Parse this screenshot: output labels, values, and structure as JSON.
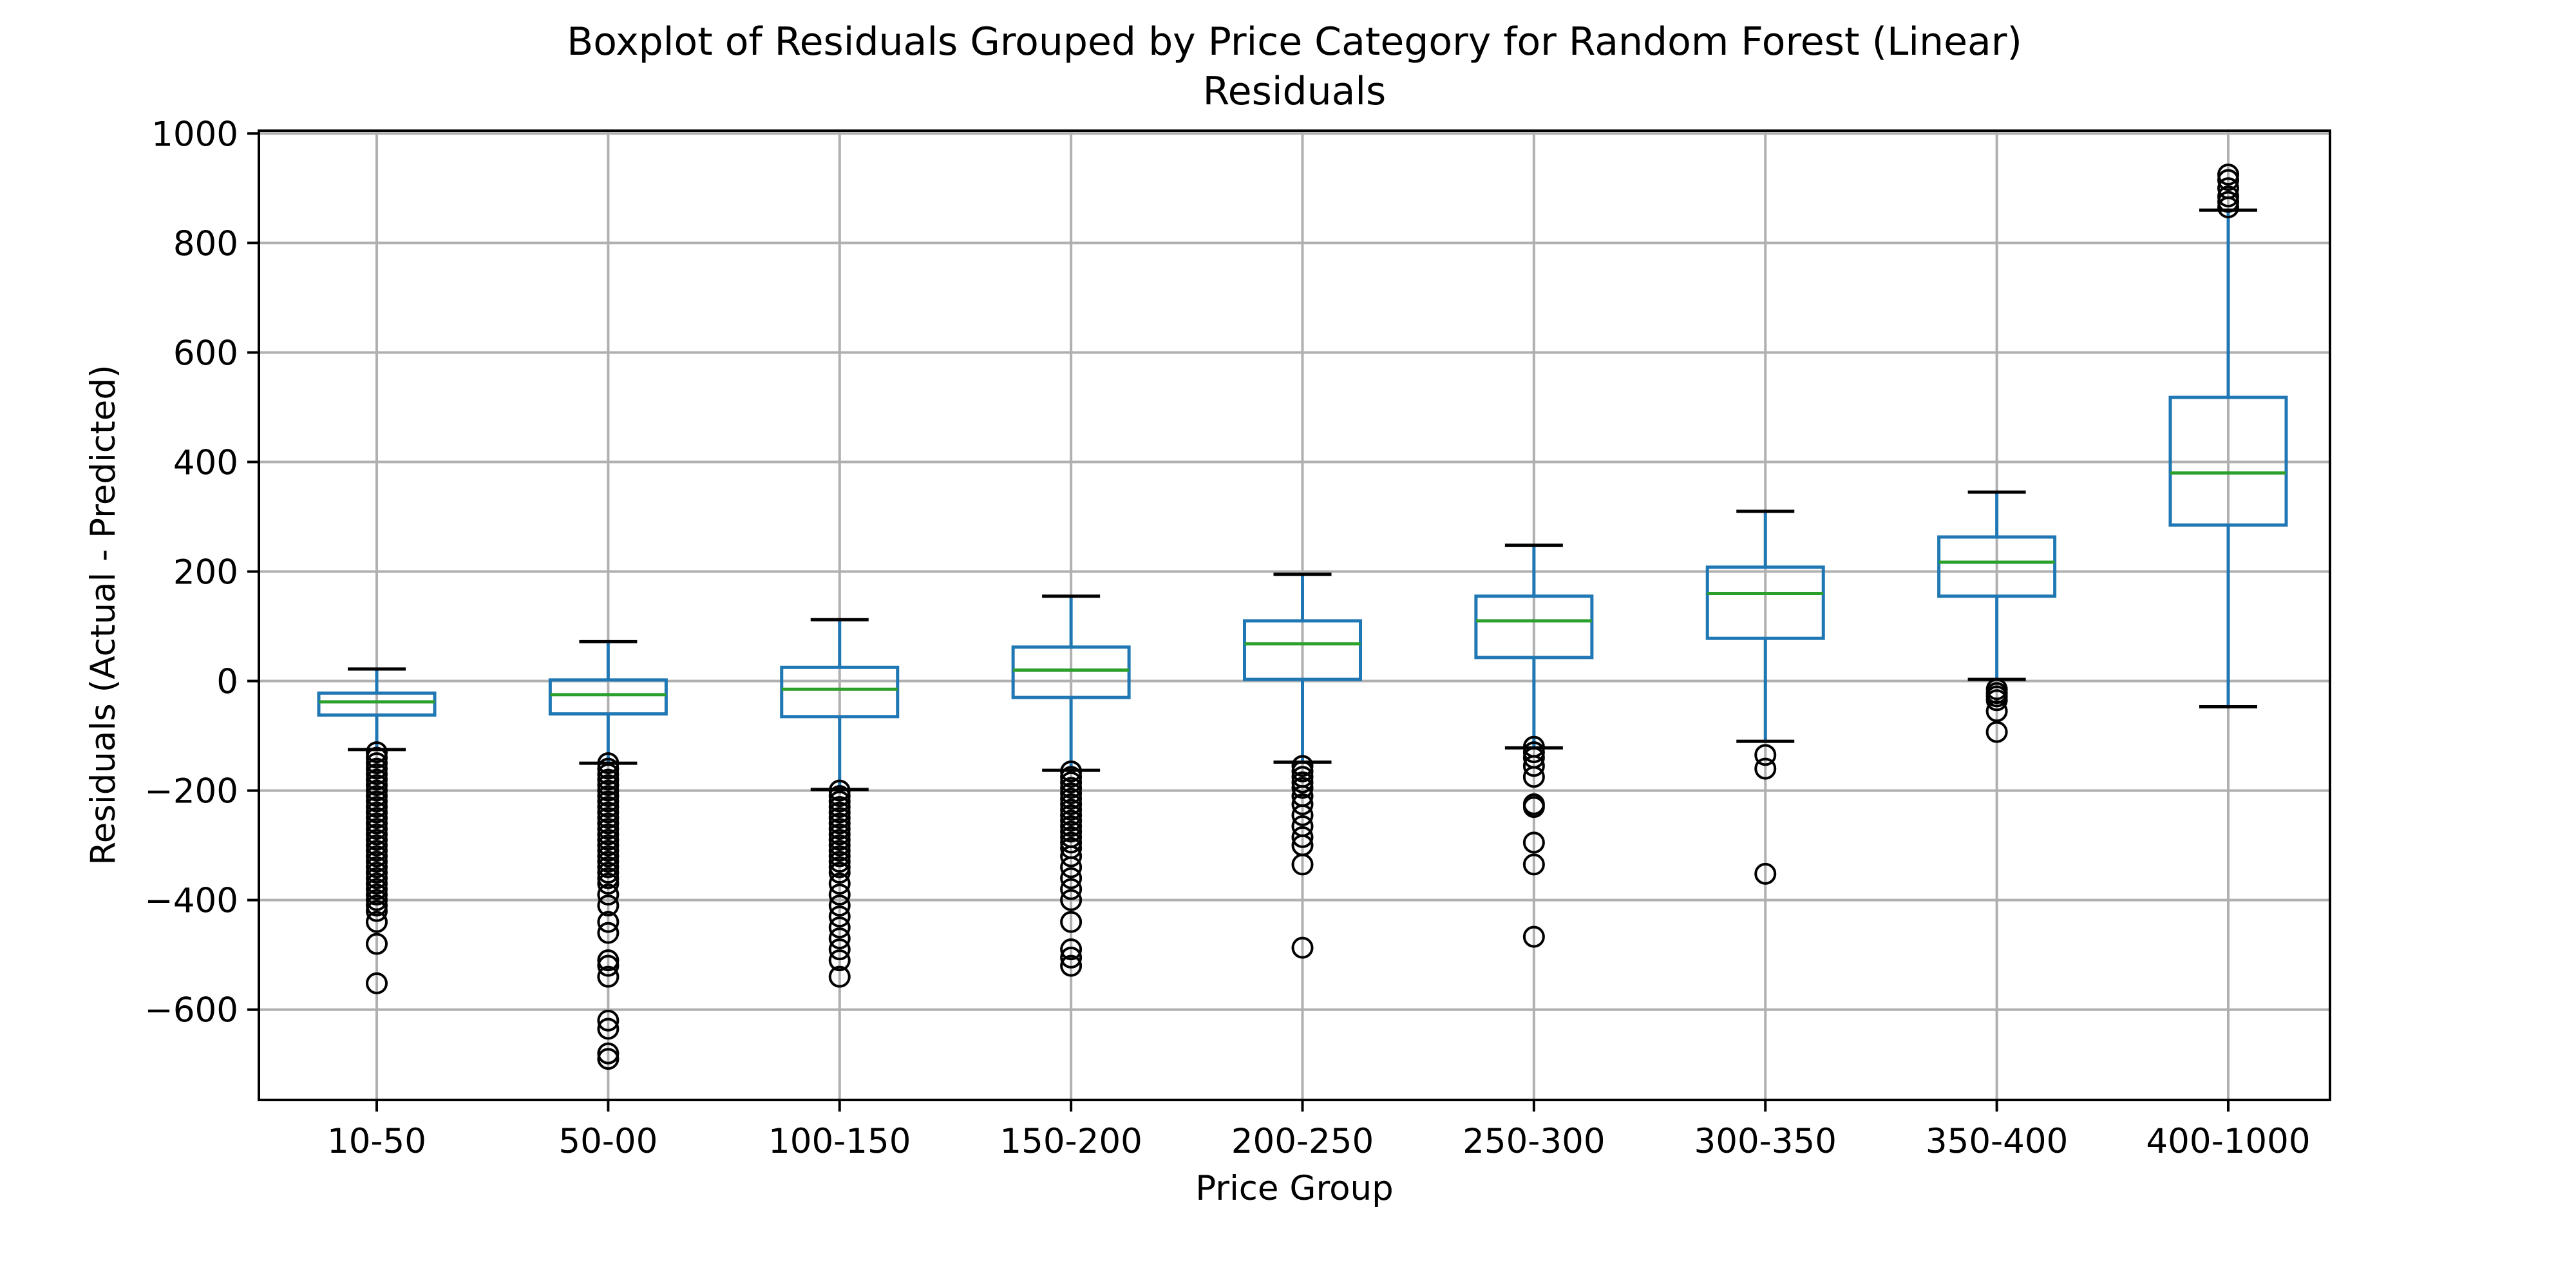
{
  "chart_data": {
    "type": "boxplot",
    "title": "Boxplot of Residuals Grouped by Price Category for Random Forest (Linear)",
    "subtitle": "Residuals",
    "xlabel": "Price Group",
    "ylabel": "Residuals (Actual - Predicted)",
    "ylim": [
      -765,
      1005
    ],
    "yticks": [
      -600,
      -400,
      -200,
      0,
      200,
      400,
      600,
      800,
      1000
    ],
    "ytick_labels": [
      "−600",
      "−400",
      "−200",
      "0",
      "200",
      "400",
      "600",
      "800",
      "1000"
    ],
    "grid": true,
    "colors": {
      "box": "#1f77b4",
      "median": "#2ca02c",
      "whisker": "#1f77b4",
      "cap": "#000000",
      "flier": "#000000"
    },
    "categories": [
      "10-50",
      "50-00",
      "100-150",
      "150-200",
      "200-250",
      "250-300",
      "300-350",
      "350-400",
      "400-1000"
    ],
    "boxes": [
      {
        "category": "10-50",
        "whisker_low": -125,
        "q1": -62,
        "median": -38,
        "q3": -22,
        "whisker_high": 22,
        "fliers": [
          -130,
          -140,
          -150,
          -160,
          -170,
          -180,
          -190,
          -200,
          -210,
          -220,
          -230,
          -240,
          -250,
          -260,
          -270,
          -280,
          -290,
          -300,
          -310,
          -320,
          -330,
          -340,
          -350,
          -360,
          -370,
          -380,
          -390,
          -400,
          -410,
          -420,
          -440,
          -480,
          -552
        ]
      },
      {
        "category": "50-00",
        "whisker_low": -150,
        "q1": -60,
        "median": -25,
        "q3": 2,
        "whisker_high": 72,
        "fliers": [
          -150,
          -160,
          -170,
          -180,
          -190,
          -200,
          -210,
          -220,
          -230,
          -240,
          -250,
          -260,
          -270,
          -280,
          -290,
          -300,
          -310,
          -320,
          -330,
          -340,
          -350,
          -360,
          -370,
          -390,
          -410,
          -440,
          -460,
          -510,
          -520,
          -540,
          -620,
          -635,
          -680,
          -690
        ]
      },
      {
        "category": "100-150",
        "whisker_low": -198,
        "q1": -65,
        "median": -15,
        "q3": 25,
        "whisker_high": 112,
        "fliers": [
          -200,
          -210,
          -220,
          -230,
          -240,
          -250,
          -260,
          -270,
          -280,
          -290,
          -300,
          -310,
          -320,
          -330,
          -340,
          -350,
          -370,
          -390,
          -410,
          -430,
          -450,
          -470,
          -490,
          -510,
          -540
        ]
      },
      {
        "category": "150-200",
        "whisker_low": -163,
        "q1": -30,
        "median": 20,
        "q3": 62,
        "whisker_high": 155,
        "fliers": [
          -165,
          -175,
          -185,
          -195,
          -205,
          -215,
          -225,
          -235,
          -245,
          -255,
          -265,
          -275,
          -285,
          -295,
          -305,
          -320,
          -340,
          -360,
          -380,
          -400,
          -440,
          -490,
          -505,
          -520
        ]
      },
      {
        "category": "200-250",
        "whisker_low": -148,
        "q1": 3,
        "median": 68,
        "q3": 110,
        "whisker_high": 195,
        "fliers": [
          -155,
          -165,
          -175,
          -185,
          -195,
          -210,
          -225,
          -245,
          -265,
          -285,
          -300,
          -335,
          -487
        ]
      },
      {
        "category": "250-300",
        "whisker_low": -122,
        "q1": 43,
        "median": 110,
        "q3": 155,
        "whisker_high": 248,
        "fliers": [
          -120,
          -130,
          -140,
          -155,
          -175,
          -225,
          -230,
          -295,
          -335,
          -467
        ]
      },
      {
        "category": "300-350",
        "whisker_low": -110,
        "q1": 78,
        "median": 160,
        "q3": 208,
        "whisker_high": 310,
        "fliers": [
          -135,
          -160,
          -352
        ]
      },
      {
        "category": "350-400",
        "whisker_low": 3,
        "q1": 155,
        "median": 217,
        "q3": 263,
        "whisker_high": 345,
        "fliers": [
          -15,
          -22,
          -28,
          -35,
          -55,
          -93
        ]
      },
      {
        "category": "400-1000",
        "whisker_low": -47,
        "q1": 285,
        "median": 380,
        "q3": 518,
        "whisker_high": 860,
        "fliers": [
          865,
          875,
          885,
          900,
          915,
          925
        ]
      }
    ]
  }
}
